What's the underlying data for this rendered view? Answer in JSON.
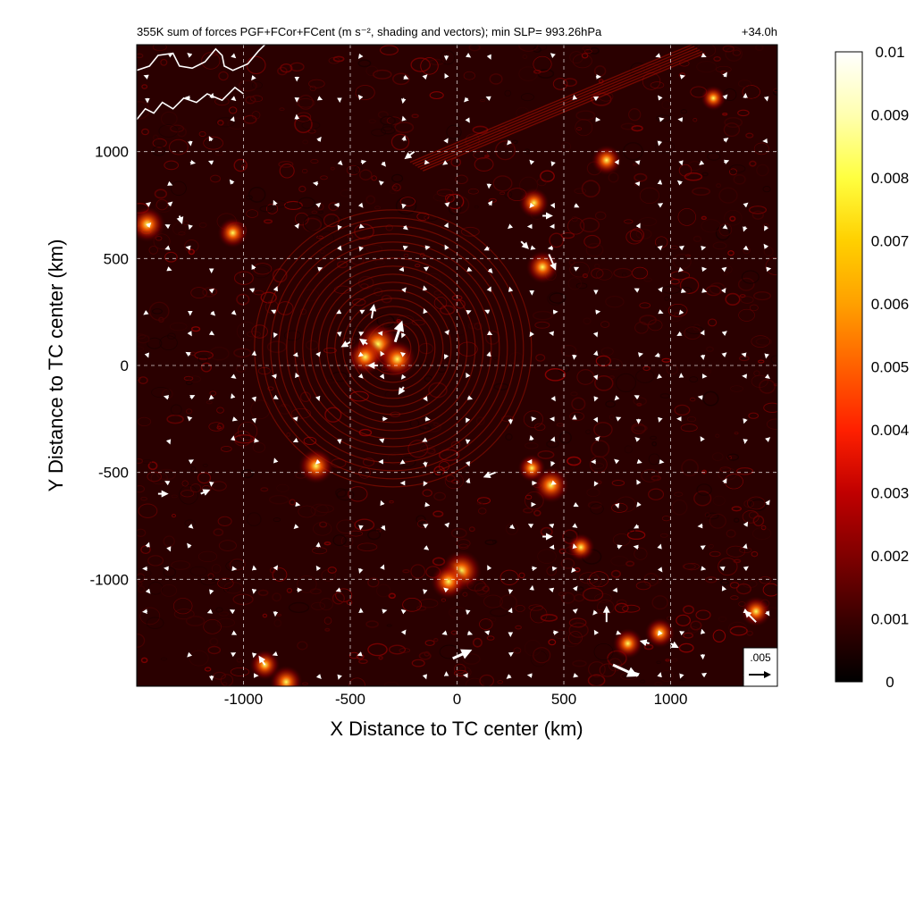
{
  "chart_data": {
    "type": "heatmap",
    "title": "355K sum of forces PGF+FCor+FCent (m s⁻², shading and vectors); min SLP= 993.26hPa",
    "time_label": "+34.0h",
    "xlabel": "X Distance to TC center (km)",
    "ylabel": "Y Distance to TC center (km)",
    "xlim": [
      -1500,
      1500
    ],
    "ylim": [
      -1500,
      1500
    ],
    "x_ticks": [
      -1000,
      -500,
      0,
      500,
      1000
    ],
    "y_ticks": [
      -1000,
      -500,
      0,
      500,
      1000
    ],
    "x_tick_labels": [
      "-1000",
      "-500",
      "0",
      "500",
      "1000"
    ],
    "y_tick_labels": [
      "-1000",
      "-500",
      "0",
      "500",
      "1000"
    ],
    "grid": true,
    "colorbar": {
      "min": 0,
      "max": 0.01,
      "ticks": [
        0,
        0.001,
        0.002,
        0.003,
        0.004,
        0.005,
        0.006,
        0.007,
        0.008,
        0.009,
        0.01
      ],
      "tick_labels": [
        "0",
        "0.001",
        "0.002",
        "0.003",
        "0.004",
        "0.005",
        "0.006",
        "0.007",
        "0.008",
        "0.009",
        "0.01"
      ],
      "colors": [
        "#000000",
        "#3a0000",
        "#800000",
        "#c00000",
        "#ff2000",
        "#ff6000",
        "#ffa000",
        "#ffd000",
        "#ffff40",
        "#ffffb0",
        "#ffffff"
      ]
    },
    "reference_vector": {
      "label": ".005",
      "value": 0.005
    },
    "hotspots": [
      {
        "x": -370,
        "y": 100,
        "strength": 0.0055
      },
      {
        "x": -280,
        "y": 30,
        "strength": 0.0045
      },
      {
        "x": -430,
        "y": 40,
        "strength": 0.004
      },
      {
        "x": -660,
        "y": -470,
        "strength": 0.004
      },
      {
        "x": 20,
        "y": -960,
        "strength": 0.005
      },
      {
        "x": -40,
        "y": -1010,
        "strength": 0.004
      },
      {
        "x": 440,
        "y": -560,
        "strength": 0.004
      },
      {
        "x": 400,
        "y": 460,
        "strength": 0.0035
      },
      {
        "x": 360,
        "y": 760,
        "strength": 0.003
      },
      {
        "x": 700,
        "y": 960,
        "strength": 0.003
      },
      {
        "x": -1450,
        "y": 660,
        "strength": 0.004
      },
      {
        "x": -1050,
        "y": 620,
        "strength": 0.003
      },
      {
        "x": -900,
        "y": -1400,
        "strength": 0.003
      },
      {
        "x": -800,
        "y": -1480,
        "strength": 0.0035
      },
      {
        "x": 800,
        "y": -1300,
        "strength": 0.003
      },
      {
        "x": 950,
        "y": -1250,
        "strength": 0.003
      },
      {
        "x": 1400,
        "y": -1150,
        "strength": 0.003
      },
      {
        "x": 1200,
        "y": 1250,
        "strength": 0.002
      },
      {
        "x": 350,
        "y": -480,
        "strength": 0.0025
      },
      {
        "x": 580,
        "y": -850,
        "strength": 0.0025
      }
    ],
    "vectors": [
      {
        "x": -290,
        "y": 110,
        "u": 0.0015,
        "v": 0.0045
      },
      {
        "x": -400,
        "y": 220,
        "u": 0.0005,
        "v": 0.003
      },
      {
        "x": -420,
        "y": 100,
        "u": -0.0015,
        "v": 0.001
      },
      {
        "x": -370,
        "y": 0,
        "u": -0.002,
        "v": 0.0
      },
      {
        "x": -500,
        "y": 110,
        "u": -0.0018,
        "v": -0.001
      },
      {
        "x": -250,
        "y": -100,
        "u": -0.001,
        "v": -0.0015
      },
      {
        "x": 430,
        "y": 520,
        "u": 0.0015,
        "v": -0.0035
      },
      {
        "x": 400,
        "y": 700,
        "u": 0.002,
        "v": 0.0
      },
      {
        "x": -20,
        "y": -1370,
        "u": 0.004,
        "v": 0.0018
      },
      {
        "x": 700,
        "y": -1200,
        "u": 0.0,
        "v": 0.0035
      },
      {
        "x": 1400,
        "y": -1200,
        "u": -0.0025,
        "v": 0.0025
      },
      {
        "x": 730,
        "y": -1400,
        "u": 0.0055,
        "v": -0.0025
      },
      {
        "x": 180,
        "y": -500,
        "u": -0.0025,
        "v": -0.001
      },
      {
        "x": -200,
        "y": 1000,
        "u": -0.002,
        "v": -0.0015
      },
      {
        "x": 300,
        "y": 580,
        "u": 0.0015,
        "v": -0.0015
      },
      {
        "x": -1300,
        "y": 700,
        "u": 0.0005,
        "v": -0.0015
      },
      {
        "x": -1200,
        "y": -600,
        "u": 0.0018,
        "v": 0.0008
      },
      {
        "x": -1400,
        "y": -600,
        "u": 0.002,
        "v": 0.0
      },
      {
        "x": 400,
        "y": -800,
        "u": 0.002,
        "v": 0.0
      },
      {
        "x": 900,
        "y": -1300,
        "u": -0.0018,
        "v": 0.0005
      },
      {
        "x": -900,
        "y": -1400,
        "u": -0.0012,
        "v": 0.0018
      },
      {
        "x": 1000,
        "y": -1300,
        "u": 0.0015,
        "v": -0.0008
      }
    ],
    "coastline": [
      [
        -1500,
        1380
      ],
      [
        -1440,
        1400
      ],
      [
        -1400,
        1450
      ],
      [
        -1330,
        1460
      ],
      [
        -1300,
        1400
      ],
      [
        -1240,
        1390
      ],
      [
        -1180,
        1420
      ],
      [
        -1130,
        1480
      ],
      [
        -1100,
        1450
      ],
      [
        -1090,
        1400
      ],
      [
        -1050,
        1380
      ],
      [
        -980,
        1410
      ],
      [
        -930,
        1470
      ],
      [
        -900,
        1500
      ]
    ],
    "coastline2": [
      [
        -1500,
        1150
      ],
      [
        -1460,
        1200
      ],
      [
        -1420,
        1180
      ],
      [
        -1380,
        1230
      ],
      [
        -1330,
        1200
      ],
      [
        -1280,
        1250
      ],
      [
        -1220,
        1230
      ],
      [
        -1170,
        1270
      ],
      [
        -1100,
        1240
      ],
      [
        -1040,
        1300
      ],
      [
        -1000,
        1270
      ]
    ]
  }
}
